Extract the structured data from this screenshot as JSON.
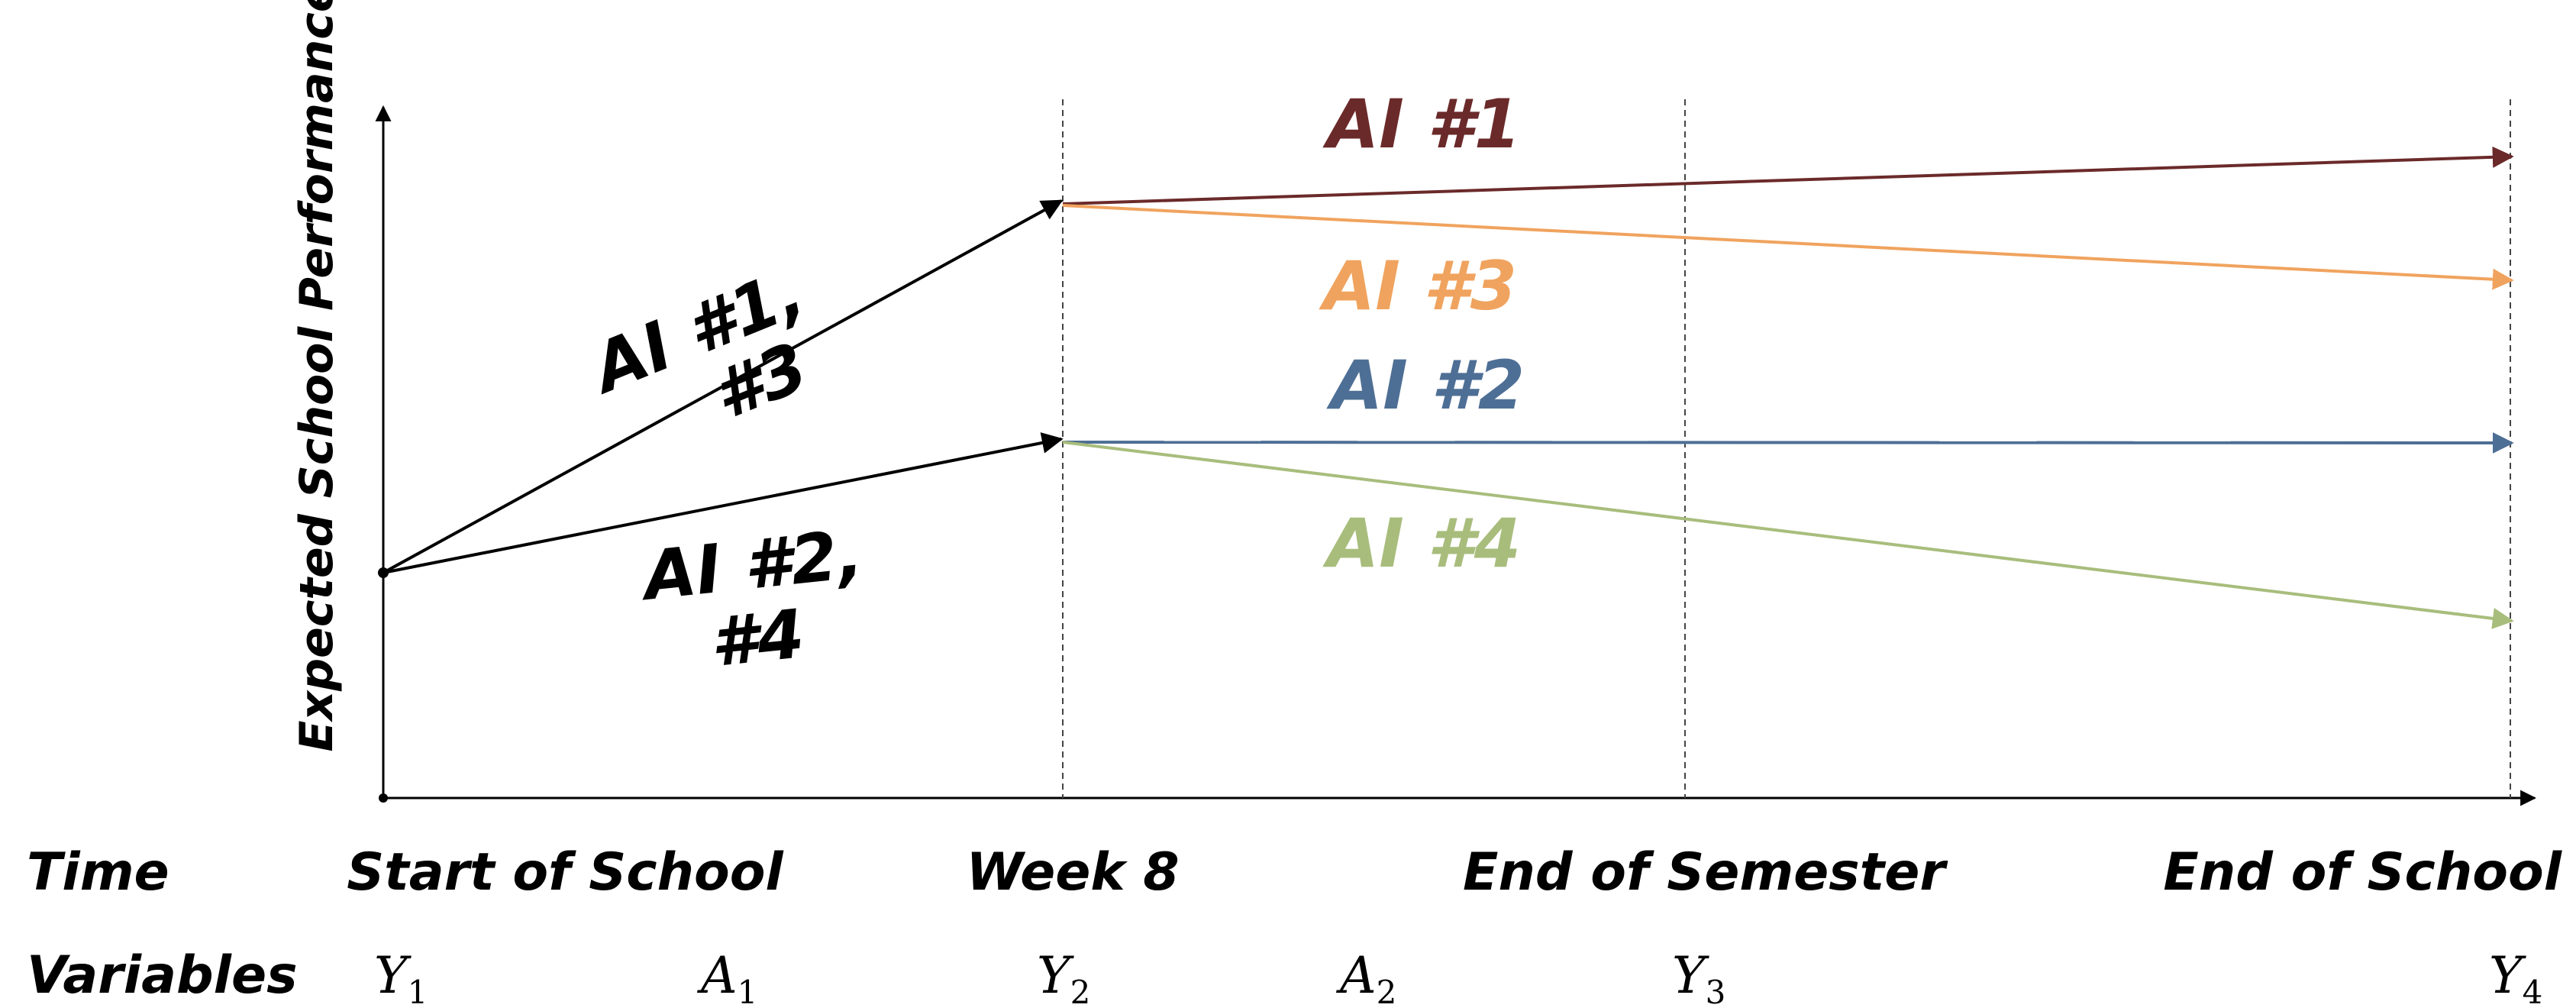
{
  "y_axis_label": "Expected School Performance",
  "rows": {
    "time_label": "Time",
    "variables_label": "Variables"
  },
  "time_points": [
    "Start of School",
    "Week 8",
    "End of Semester",
    "End of School"
  ],
  "variables": [
    {
      "letter": "Y",
      "sub": "1"
    },
    {
      "letter": "A",
      "sub": "1"
    },
    {
      "letter": "Y",
      "sub": "2"
    },
    {
      "letter": "A",
      "sub": "2"
    },
    {
      "letter": "Y",
      "sub": "3"
    },
    {
      "letter": "Y",
      "sub": "4"
    }
  ],
  "phase1_labels": {
    "upper_line1": "AI #1,",
    "upper_line2": "#3",
    "lower_line1": "AI #2,",
    "lower_line2": "#4"
  },
  "regimes": [
    {
      "name": "AI #1",
      "color": "#6b2a2a"
    },
    {
      "name": "AI #3",
      "color": "#f0a35e"
    },
    {
      "name": "AI #2",
      "color": "#4e6f95"
    },
    {
      "name": "AI #4",
      "color": "#a8bd7c"
    }
  ],
  "colors": {
    "axis": "#000000",
    "dashed": "#444444"
  }
}
